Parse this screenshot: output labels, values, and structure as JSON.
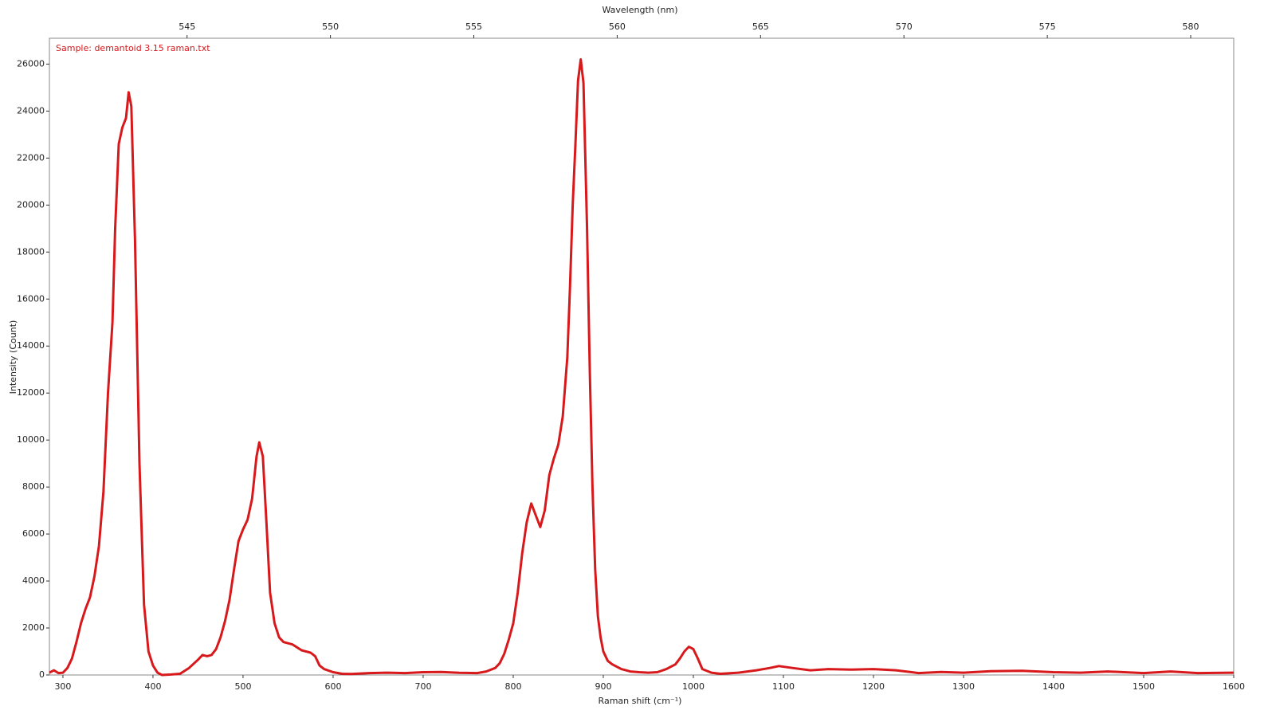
{
  "chart_data": {
    "type": "line",
    "x_label": "Raman shift (cm⁻¹)",
    "y_label": "Intensity (Count)",
    "x2_label": "Wavelength (nm)",
    "annotation": "Sample: demantoid 3.15 raman.txt",
    "color": "#d7191c",
    "x": [
      285,
      290,
      295,
      300,
      305,
      310,
      315,
      320,
      325,
      330,
      335,
      340,
      345,
      350,
      355,
      358,
      362,
      366,
      370,
      373,
      376,
      380,
      385,
      390,
      395,
      400,
      405,
      410,
      420,
      430,
      440,
      450,
      455,
      460,
      465,
      470,
      475,
      480,
      485,
      490,
      495,
      500,
      505,
      510,
      515,
      518,
      522,
      526,
      530,
      535,
      540,
      545,
      555,
      565,
      575,
      580,
      585,
      590,
      600,
      610,
      620,
      640,
      660,
      680,
      700,
      720,
      740,
      760,
      770,
      780,
      785,
      790,
      795,
      800,
      805,
      810,
      815,
      820,
      825,
      830,
      835,
      840,
      845,
      850,
      855,
      860,
      863,
      866,
      869,
      872,
      875,
      878,
      882,
      885,
      888,
      891,
      894,
      897,
      900,
      905,
      910,
      920,
      930,
      940,
      950,
      960,
      970,
      980,
      985,
      990,
      995,
      1000,
      1005,
      1010,
      1020,
      1030,
      1050,
      1070,
      1085,
      1095,
      1110,
      1130,
      1150,
      1175,
      1200,
      1225,
      1250,
      1275,
      1300,
      1330,
      1365,
      1400,
      1430,
      1460,
      1500,
      1530,
      1560,
      1600
    ],
    "values": [
      100,
      200,
      80,
      100,
      300,
      700,
      1400,
      2200,
      2800,
      3300,
      4200,
      5500,
      7800,
      12000,
      15000,
      19000,
      22600,
      23300,
      23700,
      24800,
      24200,
      18500,
      9000,
      3000,
      1000,
      400,
      100,
      0,
      20,
      50,
      300,
      650,
      850,
      800,
      850,
      1100,
      1600,
      2300,
      3200,
      4500,
      5700,
      6200,
      6600,
      7500,
      9300,
      9900,
      9300,
      6500,
      3500,
      2200,
      1600,
      1400,
      1300,
      1050,
      950,
      800,
      400,
      250,
      120,
      50,
      40,
      80,
      100,
      80,
      120,
      130,
      90,
      80,
      150,
      300,
      500,
      900,
      1500,
      2200,
      3500,
      5200,
      6500,
      7300,
      6800,
      6300,
      7000,
      8500,
      9200,
      9800,
      11000,
      13500,
      16500,
      20000,
      22500,
      25300,
      26200,
      25200,
      19000,
      13000,
      8000,
      4500,
      2500,
      1600,
      1000,
      600,
      450,
      250,
      150,
      120,
      100,
      120,
      250,
      450,
      700,
      1000,
      1200,
      1100,
      700,
      250,
      100,
      50,
      100,
      200,
      300,
      380,
      300,
      200,
      250,
      230,
      250,
      200,
      80,
      130,
      100,
      160,
      180,
      120,
      100,
      150,
      80,
      150,
      80,
      100
    ],
    "xlim": [
      285,
      1600
    ],
    "xticks": [
      300,
      400,
      500,
      600,
      700,
      800,
      900,
      1000,
      1100,
      1200,
      1300,
      1400,
      1500,
      1600
    ],
    "ylim": [
      0,
      27100
    ],
    "yticks": [
      0,
      2000,
      4000,
      6000,
      8000,
      10000,
      12000,
      14000,
      16000,
      18000,
      20000,
      22000,
      24000,
      26000
    ],
    "x2lim": [
      540.2,
      581.5
    ],
    "x2ticks": [
      545,
      550,
      555,
      560,
      565,
      570,
      575,
      580
    ],
    "grid": false
  }
}
